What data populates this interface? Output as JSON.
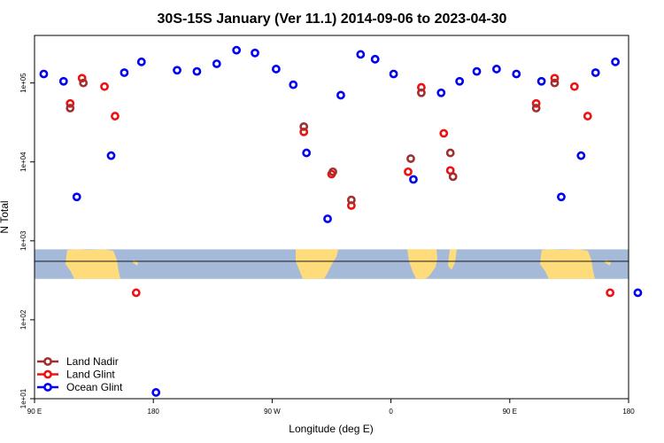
{
  "chart_data": {
    "type": "scatter",
    "title": "30S-15S January (Ver 11.1)   2014-09-06 to 2023-04-30",
    "xlabel": "Longitude (deg E)",
    "ylabel": "N Total",
    "x_scale": "linear",
    "y_scale": "log",
    "xlim": [
      90,
      540
    ],
    "ylim": [
      10,
      400000
    ],
    "x_ticks": [
      {
        "value": 90,
        "label": "90 E"
      },
      {
        "value": 180,
        "label": "180"
      },
      {
        "value": 270,
        "label": "90 W"
      },
      {
        "value": 360,
        "label": "0"
      },
      {
        "value": 450,
        "label": "90 E"
      },
      {
        "value": 540,
        "label": "180"
      }
    ],
    "y_ticks": [
      {
        "value": 10,
        "label": "1e+01"
      },
      {
        "value": 100,
        "label": "1e+02"
      },
      {
        "value": 1000,
        "label": "1e+03"
      },
      {
        "value": 10000,
        "label": "1e+04"
      },
      {
        "value": 100000,
        "label": "1e+05"
      }
    ],
    "grid": false,
    "legend_position": "bottom-left",
    "background_map": {
      "description": "world map strip for the latitude band",
      "ocean_color": "#a5b9d8",
      "land_color": "#fedc7c",
      "y_range": [
        330,
        780
      ],
      "reference_line_value": 550
    },
    "series": [
      {
        "name": "Land Nadir",
        "color": "#a03030",
        "x": [
          117,
          127,
          294,
          316,
          330,
          375,
          383,
          405,
          407,
          470,
          484
        ],
        "y": [
          48000,
          100000,
          28000,
          7500,
          3300,
          11000,
          75000,
          13000,
          6500,
          48000,
          100000
        ]
      },
      {
        "name": "Land Glint",
        "color": "#ee1111",
        "x": [
          117,
          126,
          143,
          151,
          167,
          294,
          315,
          330,
          373,
          383,
          400,
          405,
          470,
          484,
          499,
          509,
          526
        ],
        "y": [
          55000,
          115000,
          90000,
          38000,
          220,
          24000,
          7000,
          2800,
          7500,
          88000,
          23000,
          7800,
          55000,
          115000,
          90000,
          38000,
          220
        ]
      },
      {
        "name": "Ocean Glint",
        "color": "#0000ee",
        "x": [
          97,
          112,
          122,
          148,
          158,
          171,
          182,
          198,
          213,
          228,
          243,
          257,
          273,
          286,
          296,
          312,
          322,
          337,
          348,
          362,
          377,
          398,
          412,
          425,
          440,
          455,
          474,
          489,
          504,
          515,
          530,
          547
        ],
        "y": [
          130000,
          105000,
          3600,
          12000,
          135000,
          185000,
          12,
          145000,
          140000,
          175000,
          260000,
          240000,
          150000,
          95000,
          13000,
          1900,
          70000,
          230000,
          200000,
          130000,
          6000,
          75000,
          105000,
          140000,
          150000,
          130000,
          105000,
          3600,
          12000,
          135000,
          185000,
          220
        ]
      }
    ]
  }
}
